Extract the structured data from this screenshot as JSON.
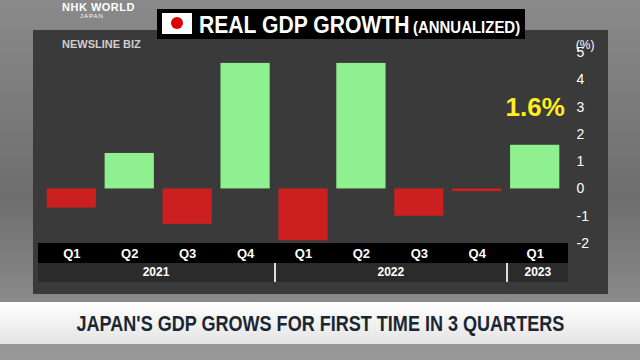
{
  "chart_data": {
    "type": "bar",
    "title": "REAL GDP GROWTH",
    "subtitle": "(ANNUALIZED)",
    "y_label": "(%)",
    "categories": [
      "Q1",
      "Q2",
      "Q3",
      "Q4",
      "Q1",
      "Q2",
      "Q3",
      "Q4",
      "Q1"
    ],
    "years": [
      "2021",
      "2021",
      "2021",
      "2021",
      "2022",
      "2022",
      "2022",
      "2022",
      "2023"
    ],
    "values": [
      -0.7,
      1.3,
      -1.3,
      4.6,
      -1.9,
      4.6,
      -1.0,
      -0.1,
      1.6
    ],
    "value_labels": [
      null,
      null,
      null,
      null,
      null,
      null,
      null,
      null,
      "1.6%"
    ],
    "data_labels": true,
    "colors": [
      "#cc1f1f",
      "#8ff08f",
      "#cc1f1f",
      "#8ff08f",
      "#cc1f1f",
      "#8ff08f",
      "#cc1f1f",
      "#cc1f1f",
      "#8ff08f"
    ],
    "ylim": [
      -2,
      5
    ],
    "yticks": [
      -2,
      -1,
      0,
      1,
      2,
      3,
      4,
      5
    ]
  },
  "screen": {
    "logo": "NHK WORLD",
    "logo_sub": "JAPAN",
    "program": "NEWSLINE BIZ",
    "headline": "JAPAN'S GDP GROWS FOR FIRST TIME IN 3 QUARTERS"
  }
}
